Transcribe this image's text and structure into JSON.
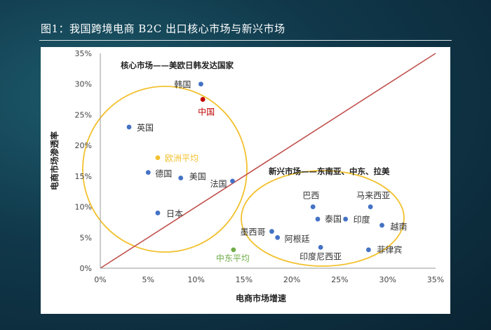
{
  "title": "图1：我国跨境电商 B2C 出口核心市场与新兴市场",
  "chart_data": {
    "type": "scatter",
    "xlabel": "电商市场增速",
    "ylabel": "电商市场渗透率",
    "xlim": [
      0,
      35
    ],
    "ylim": [
      0,
      35
    ],
    "x_ticks": [
      "0%",
      "5%",
      "10%",
      "15%",
      "20%",
      "25%",
      "30%",
      "35%"
    ],
    "y_ticks": [
      "0%",
      "5%",
      "10%",
      "15%",
      "20%",
      "25%",
      "30%",
      "35%"
    ],
    "diagonal": {
      "from": [
        0,
        0
      ],
      "to": [
        35,
        35
      ],
      "color": "#c0504d"
    },
    "group_labels": [
      {
        "text": "核心市场——美欧日韩发达国家"
      },
      {
        "text": "新兴市场——东南亚、中东、拉美"
      }
    ],
    "points": [
      {
        "label": "韩国",
        "x": 10.5,
        "y": 30.0,
        "color": "#4472c4"
      },
      {
        "label": "中国",
        "x": 10.7,
        "y": 27.5,
        "color": "#c00000"
      },
      {
        "label": "英国",
        "x": 3.0,
        "y": 23.0,
        "color": "#4472c4"
      },
      {
        "label": "欧洲平均",
        "x": 6.0,
        "y": 18.0,
        "color": "#f2c12e"
      },
      {
        "label": "德国",
        "x": 5.0,
        "y": 15.6,
        "color": "#4472c4"
      },
      {
        "label": "美国",
        "x": 8.4,
        "y": 14.7,
        "color": "#4472c4"
      },
      {
        "label": "法国",
        "x": 13.8,
        "y": 14.2,
        "color": "#4472c4"
      },
      {
        "label": "日本",
        "x": 6.0,
        "y": 9.0,
        "color": "#4472c4"
      },
      {
        "label": "巴西",
        "x": 22.2,
        "y": 10.0,
        "color": "#4472c4"
      },
      {
        "label": "马来西亚",
        "x": 28.2,
        "y": 10.0,
        "color": "#4472c4"
      },
      {
        "label": "泰国",
        "x": 22.7,
        "y": 8.0,
        "color": "#4472c4"
      },
      {
        "label": "印度",
        "x": 25.6,
        "y": 8.0,
        "color": "#4472c4"
      },
      {
        "label": "越南",
        "x": 29.4,
        "y": 7.0,
        "color": "#4472c4"
      },
      {
        "label": "墨西哥",
        "x": 17.9,
        "y": 6.0,
        "color": "#4472c4"
      },
      {
        "label": "阿根廷",
        "x": 18.5,
        "y": 5.0,
        "color": "#4472c4"
      },
      {
        "label": "印度尼西亚",
        "x": 23.0,
        "y": 3.4,
        "color": "#4472c4"
      },
      {
        "label": "菲律宾",
        "x": 28.0,
        "y": 3.0,
        "color": "#4472c4"
      },
      {
        "label": "中东平均",
        "x": 13.9,
        "y": 3.0,
        "color": "#70ad47"
      }
    ]
  }
}
